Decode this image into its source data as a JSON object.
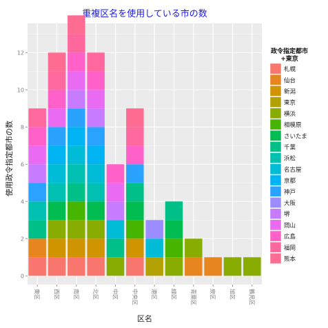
{
  "chart_data": {
    "type": "bar",
    "stacked": true,
    "title": "重複区名を使用している市の数",
    "xlabel": "区名",
    "ylabel": "使用政令指定都市の数",
    "ylim": [
      0,
      14
    ],
    "yticks": [
      0,
      2,
      4,
      6,
      8,
      10,
      12
    ],
    "grid": true,
    "legend_position": "right",
    "legend_title": "政令指定都市\n+東京",
    "categories": [
      "東区",
      "西区",
      "南区",
      "北区",
      "中区",
      "中央区",
      "港区",
      "緑区",
      "青葉区",
      "泉区",
      "旭区",
      "鶴見区"
    ],
    "series": [
      {
        "name": "札幌",
        "color": "#F8766D",
        "values": [
          1,
          1,
          1,
          1,
          0,
          1,
          0,
          0,
          0,
          0,
          0,
          0
        ]
      },
      {
        "name": "仙台",
        "color": "#E7851E",
        "values": [
          1,
          0,
          0,
          0,
          0,
          0,
          0,
          0,
          1,
          1,
          0,
          0
        ]
      },
      {
        "name": "新潟",
        "color": "#D09400",
        "values": [
          0,
          1,
          1,
          1,
          0,
          1,
          0,
          0,
          0,
          0,
          0,
          0
        ]
      },
      {
        "name": "東京",
        "color": "#B2A100",
        "values": [
          0,
          0,
          0,
          0,
          0,
          0,
          1,
          0,
          0,
          0,
          0,
          0
        ]
      },
      {
        "name": "横浜",
        "color": "#89AC00",
        "values": [
          0,
          1,
          1,
          1,
          1,
          0,
          0,
          1,
          1,
          0,
          1,
          1
        ]
      },
      {
        "name": "相模原",
        "color": "#45B500",
        "values": [
          0,
          0,
          1,
          0,
          0,
          1,
          0,
          1,
          0,
          0,
          0,
          0
        ]
      },
      {
        "name": "さいたま",
        "color": "#00BC51",
        "values": [
          0,
          1,
          0,
          1,
          0,
          1,
          0,
          1,
          0,
          0,
          0,
          0
        ]
      },
      {
        "name": "千葉",
        "color": "#00C087",
        "values": [
          1,
          0,
          1,
          0,
          1,
          1,
          0,
          1,
          0,
          0,
          0,
          0
        ]
      },
      {
        "name": "浜松",
        "color": "#00C0B2",
        "values": [
          1,
          1,
          1,
          1,
          0,
          0,
          0,
          0,
          0,
          0,
          0,
          0
        ]
      },
      {
        "name": "名古屋",
        "color": "#00BCD6",
        "values": [
          0,
          1,
          1,
          1,
          1,
          0,
          1,
          0,
          0,
          0,
          0,
          0
        ]
      },
      {
        "name": "京都",
        "color": "#00B3F2",
        "values": [
          0,
          1,
          1,
          1,
          0,
          0,
          0,
          0,
          0,
          0,
          0,
          0
        ]
      },
      {
        "name": "神戸",
        "color": "#29A3FF",
        "values": [
          1,
          1,
          1,
          1,
          0,
          1,
          0,
          0,
          0,
          0,
          0,
          0
        ]
      },
      {
        "name": "大阪",
        "color": "#9C8DFF",
        "values": [
          0,
          0,
          0,
          0,
          0,
          0,
          1,
          0,
          0,
          0,
          0,
          0
        ]
      },
      {
        "name": "堺",
        "color": "#C77CFF",
        "values": [
          1,
          0,
          1,
          1,
          1,
          0,
          0,
          0,
          0,
          0,
          0,
          0
        ]
      },
      {
        "name": "岡山",
        "color": "#E86BF1",
        "values": [
          1,
          1,
          1,
          1,
          1,
          0,
          0,
          0,
          0,
          0,
          0,
          0
        ]
      },
      {
        "name": "広島",
        "color": "#FF61C9",
        "values": [
          1,
          1,
          1,
          1,
          1,
          1,
          0,
          0,
          0,
          0,
          0,
          0
        ]
      },
      {
        "name": "福岡",
        "color": "#FF689D",
        "values": [
          1,
          1,
          1,
          1,
          0,
          1,
          0,
          0,
          0,
          0,
          0,
          0
        ]
      },
      {
        "name": "熊本",
        "color": "#FF6C91",
        "values": [
          0,
          1,
          1,
          0,
          0,
          1,
          0,
          0,
          0,
          0,
          0,
          0
        ]
      }
    ]
  },
  "colors": {
    "panel_background": "#EBEBEB",
    "grid_major": "#FFFFFF",
    "grid_minor": "#F5F5F5",
    "title": "#1A1AE6"
  }
}
